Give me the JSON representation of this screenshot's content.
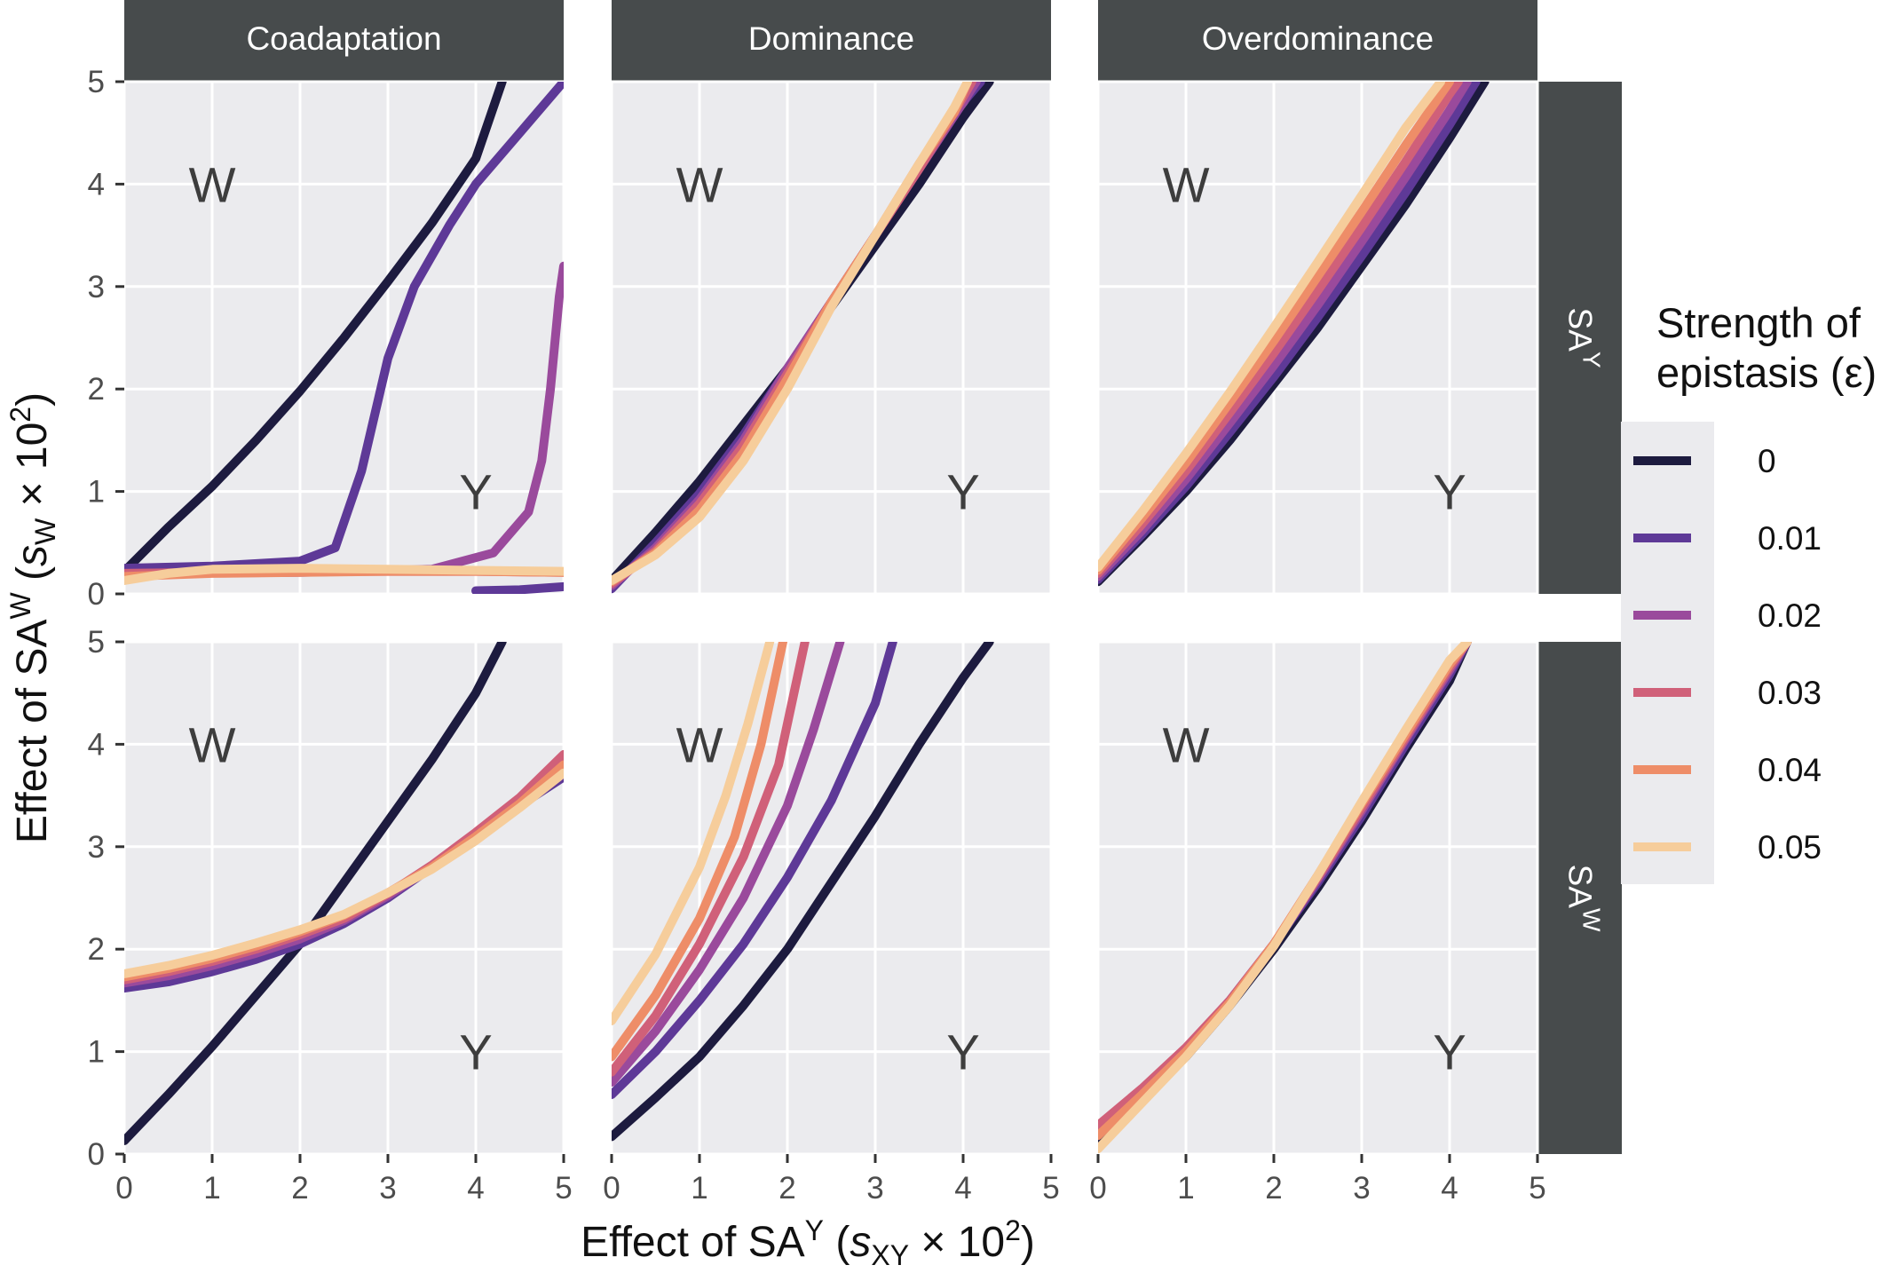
{
  "chart_data": {
    "type": "line",
    "columns": [
      "Coadaptation",
      "Dominance",
      "Overdominance"
    ],
    "rows": [
      "SAY",
      "SAW"
    ],
    "xlabel": "Effect of SAY (sXY × 10²)",
    "ylabel": "Effect of SAW (sW × 10²)",
    "xlim": [
      0,
      5
    ],
    "ylim": [
      0,
      5
    ],
    "x_ticks": [
      "0",
      "1",
      "2",
      "3",
      "4",
      "5"
    ],
    "y_ticks": [
      "0",
      "1",
      "2",
      "3",
      "4",
      "5"
    ],
    "region_labels": {
      "upper_left": "W",
      "lower_right": "Y"
    },
    "grid": true,
    "legend": {
      "title_line1": "Strength of",
      "title_line2": "epistasis (ε)",
      "position": "right",
      "entries": [
        {
          "label": "0",
          "color": "#1d1b3f"
        },
        {
          "label": "0.01",
          "color": "#5e3997"
        },
        {
          "label": "0.02",
          "color": "#9a4a9c"
        },
        {
          "label": "0.03",
          "color": "#d06079"
        },
        {
          "label": "0.04",
          "color": "#ee8d68"
        },
        {
          "label": "0.05",
          "color": "#f6cd9b"
        }
      ]
    },
    "panels": [
      {
        "column": "Coadaptation",
        "row": "SAY",
        "series": [
          {
            "epsilon": "0",
            "x": [
              0,
              0.5,
              1,
              1.5,
              2,
              2.5,
              3,
              3.5,
              4,
              4.3
            ],
            "y": [
              0.22,
              0.65,
              1.05,
              1.5,
              1.98,
              2.5,
              3.05,
              3.62,
              4.25,
              5.0
            ]
          },
          {
            "epsilon": "0.01",
            "x": [
              0,
              1,
              2,
              2.4,
              2.7,
              3,
              3.3,
              3.7,
              4,
              4.5,
              5
            ],
            "y": [
              0.25,
              0.27,
              0.32,
              0.45,
              1.2,
              2.3,
              3.0,
              3.6,
              4.0,
              4.5,
              5.0
            ]
          },
          {
            "epsilon": "0.02",
            "x": [
              0,
              2,
              3.5,
              4.2,
              4.6,
              4.75,
              4.85,
              4.95,
              5
            ],
            "y": [
              0.2,
              0.21,
              0.24,
              0.4,
              0.8,
              1.3,
              2.0,
              2.9,
              3.2
            ]
          },
          {
            "epsilon": "0.03",
            "x": [
              0,
              1,
              2,
              3,
              4,
              5
            ],
            "y": [
              0.2,
              0.21,
              0.22,
              0.22,
              0.22,
              0.21
            ]
          },
          {
            "epsilon": "0.04",
            "x": [
              0,
              1,
              2,
              3,
              4,
              5
            ],
            "y": [
              0.17,
              0.2,
              0.21,
              0.22,
              0.22,
              0.21
            ]
          },
          {
            "epsilon": "0.05",
            "x": [
              0,
              0.5,
              1,
              2,
              3,
              4,
              5
            ],
            "y": [
              0.13,
              0.2,
              0.24,
              0.25,
              0.24,
              0.23,
              0.22
            ]
          },
          {
            "epsilon": "0.01",
            "x": [
              4.0,
              4.5,
              5.0
            ],
            "y": [
              0.03,
              0.04,
              0.07
            ]
          }
        ]
      },
      {
        "column": "Dominance",
        "row": "SAY",
        "series": [
          {
            "epsilon": "0",
            "x": [
              0,
              0.5,
              1,
              1.5,
              2,
              2.5,
              3,
              3.5,
              4,
              4.3
            ],
            "y": [
              0.13,
              0.6,
              1.1,
              1.65,
              2.2,
              2.8,
              3.4,
              4.0,
              4.65,
              5.0
            ]
          },
          {
            "epsilon": "0.01",
            "x": [
              0,
              0.5,
              1,
              1.5,
              2,
              2.5,
              3,
              3.5,
              4,
              4.2
            ],
            "y": [
              0.05,
              0.5,
              0.98,
              1.55,
              2.2,
              2.85,
              3.5,
              4.15,
              4.8,
              5.0
            ]
          },
          {
            "epsilon": "0.02",
            "x": [
              0,
              0.5,
              1,
              1.5,
              2,
              2.5,
              3,
              3.5,
              4,
              4.15
            ],
            "y": [
              0.08,
              0.45,
              0.92,
              1.5,
              2.2,
              2.85,
              3.5,
              4.15,
              4.8,
              5.0
            ]
          },
          {
            "epsilon": "0.03",
            "x": [
              0,
              0.5,
              1,
              1.5,
              2,
              2.5,
              3,
              3.5,
              3.9,
              4.1
            ],
            "y": [
              0.1,
              0.42,
              0.88,
              1.45,
              2.15,
              2.85,
              3.5,
              4.15,
              4.7,
              5.0
            ]
          },
          {
            "epsilon": "0.04",
            "x": [
              0,
              0.5,
              1,
              1.5,
              2,
              2.5,
              3,
              3.5,
              3.9,
              4.05
            ],
            "y": [
              0.12,
              0.4,
              0.82,
              1.38,
              2.1,
              2.85,
              3.5,
              4.2,
              4.7,
              5.0
            ]
          },
          {
            "epsilon": "0.05",
            "x": [
              0,
              0.5,
              1,
              1.5,
              2,
              2.5,
              3,
              3.5,
              3.9,
              4.05
            ],
            "y": [
              0.13,
              0.38,
              0.75,
              1.3,
              2.0,
              2.8,
              3.5,
              4.2,
              4.75,
              5.0
            ]
          }
        ]
      },
      {
        "column": "Overdominance",
        "row": "SAY",
        "series": [
          {
            "epsilon": "0",
            "x": [
              0,
              0.5,
              1,
              1.5,
              2,
              2.5,
              3,
              3.5,
              4,
              4.4
            ],
            "y": [
              0.12,
              0.55,
              1.0,
              1.5,
              2.05,
              2.6,
              3.2,
              3.8,
              4.45,
              5.0
            ]
          },
          {
            "epsilon": "0.01",
            "x": [
              0,
              0.5,
              1,
              1.5,
              2,
              2.5,
              3,
              3.5,
              4,
              4.3
            ],
            "y": [
              0.14,
              0.58,
              1.05,
              1.58,
              2.12,
              2.7,
              3.3,
              3.92,
              4.58,
              5.0
            ]
          },
          {
            "epsilon": "0.02",
            "x": [
              0,
              0.5,
              1,
              1.5,
              2,
              2.5,
              3,
              3.5,
              4,
              4.2
            ],
            "y": [
              0.17,
              0.62,
              1.12,
              1.67,
              2.23,
              2.82,
              3.44,
              4.07,
              4.72,
              5.0
            ]
          },
          {
            "epsilon": "0.03",
            "x": [
              0,
              0.5,
              1,
              1.5,
              2,
              2.5,
              3,
              3.5,
              4,
              4.1
            ],
            "y": [
              0.2,
              0.68,
              1.2,
              1.77,
              2.35,
              2.96,
              3.58,
              4.22,
              4.88,
              5.0
            ]
          },
          {
            "epsilon": "0.04",
            "x": [
              0,
              0.5,
              1,
              1.5,
              2,
              2.5,
              3,
              3.5,
              4.0
            ],
            "y": [
              0.23,
              0.74,
              1.28,
              1.87,
              2.47,
              3.1,
              3.73,
              4.38,
              5.0
            ]
          },
          {
            "epsilon": "0.05",
            "x": [
              0,
              0.5,
              1,
              1.5,
              2,
              2.5,
              3,
              3.5,
              3.9
            ],
            "y": [
              0.26,
              0.8,
              1.37,
              1.97,
              2.6,
              3.24,
              3.89,
              4.55,
              5.0
            ]
          }
        ]
      },
      {
        "column": "Coadaptation",
        "row": "SAW",
        "series": [
          {
            "epsilon": "0",
            "x": [
              0,
              0.5,
              1,
              1.5,
              2,
              2.5,
              3,
              3.5,
              4,
              4.3
            ],
            "y": [
              0.13,
              0.58,
              1.05,
              1.55,
              2.05,
              2.65,
              3.25,
              3.85,
              4.5,
              5.0
            ]
          },
          {
            "epsilon": "0.01",
            "x": [
              0,
              0.5,
              1,
              1.5,
              2,
              2.5,
              3,
              3.5,
              4,
              4.5,
              5
            ],
            "y": [
              1.62,
              1.68,
              1.78,
              1.9,
              2.05,
              2.25,
              2.5,
              2.8,
              3.1,
              3.4,
              3.68
            ]
          },
          {
            "epsilon": "0.02",
            "x": [
              0,
              0.5,
              1,
              1.5,
              2,
              2.5,
              3,
              3.5,
              4,
              4.5,
              5
            ],
            "y": [
              1.67,
              1.74,
              1.84,
              1.96,
              2.1,
              2.28,
              2.52,
              2.8,
              3.12,
              3.45,
              3.82
            ]
          },
          {
            "epsilon": "0.03",
            "x": [
              0,
              0.5,
              1,
              1.5,
              2,
              2.5,
              3,
              3.5,
              4,
              4.5,
              5
            ],
            "y": [
              1.7,
              1.78,
              1.88,
              2.0,
              2.14,
              2.3,
              2.54,
              2.82,
              3.14,
              3.48,
              3.9
            ]
          },
          {
            "epsilon": "0.04",
            "x": [
              0,
              0.5,
              1,
              1.5,
              2,
              2.5,
              3,
              3.5,
              4,
              4.5,
              5
            ],
            "y": [
              1.73,
              1.81,
              1.91,
              2.03,
              2.17,
              2.33,
              2.55,
              2.8,
              3.1,
              3.42,
              3.8
            ]
          },
          {
            "epsilon": "0.05",
            "x": [
              0,
              0.5,
              1,
              1.5,
              2,
              2.5,
              3,
              3.5,
              4,
              4.5,
              5
            ],
            "y": [
              1.76,
              1.84,
              1.94,
              2.06,
              2.19,
              2.34,
              2.55,
              2.78,
              3.06,
              3.38,
              3.72
            ]
          }
        ]
      },
      {
        "column": "Dominance",
        "row": "SAW",
        "series": [
          {
            "epsilon": "0",
            "x": [
              0,
              0.5,
              1,
              1.5,
              2,
              2.5,
              3,
              3.5,
              4,
              4.3
            ],
            "y": [
              0.17,
              0.55,
              0.95,
              1.45,
              2.0,
              2.65,
              3.3,
              4.0,
              4.65,
              5.0
            ]
          },
          {
            "epsilon": "0.01",
            "x": [
              0,
              0.5,
              1,
              1.5,
              2,
              2.5,
              3,
              3.2
            ],
            "y": [
              0.58,
              1.0,
              1.5,
              2.05,
              2.7,
              3.45,
              4.4,
              5.0
            ]
          },
          {
            "epsilon": "0.02",
            "x": [
              0,
              0.5,
              1,
              1.5,
              2,
              2.3,
              2.6
            ],
            "y": [
              0.7,
              1.2,
              1.8,
              2.5,
              3.4,
              4.15,
              5.0
            ]
          },
          {
            "epsilon": "0.03",
            "x": [
              0,
              0.5,
              1,
              1.5,
              1.9,
              2.2
            ],
            "y": [
              0.8,
              1.35,
              2.05,
              2.9,
              3.8,
              5.0
            ]
          },
          {
            "epsilon": "0.04",
            "x": [
              0,
              0.5,
              1,
              1.4,
              1.7,
              1.95
            ],
            "y": [
              0.95,
              1.55,
              2.3,
              3.1,
              4.0,
              5.0
            ]
          },
          {
            "epsilon": "0.05",
            "x": [
              0,
              0.5,
              1,
              1.3,
              1.55,
              1.8
            ],
            "y": [
              1.3,
              1.95,
              2.8,
              3.5,
              4.2,
              5.0
            ]
          }
        ]
      },
      {
        "column": "Overdominance",
        "row": "SAW",
        "series": [
          {
            "epsilon": "0",
            "x": [
              0,
              0.5,
              1,
              1.5,
              2,
              2.5,
              3,
              3.5,
              4,
              4.2
            ],
            "y": [
              0.15,
              0.55,
              0.95,
              1.45,
              2.0,
              2.6,
              3.25,
              3.95,
              4.62,
              5.0
            ]
          },
          {
            "epsilon": "0.01",
            "x": [
              0,
              0.5,
              1,
              1.5,
              2,
              2.5,
              3,
              3.5,
              4,
              4.2
            ],
            "y": [
              0.2,
              0.58,
              1.0,
              1.5,
              2.05,
              2.65,
              3.3,
              4.0,
              4.68,
              5.0
            ]
          },
          {
            "epsilon": "0.02",
            "x": [
              0,
              0.5,
              1,
              1.5,
              2,
              2.5,
              3,
              3.5,
              4,
              4.2
            ],
            "y": [
              0.25,
              0.62,
              1.03,
              1.5,
              2.05,
              2.68,
              3.35,
              4.05,
              4.72,
              5.0
            ]
          },
          {
            "epsilon": "0.03",
            "x": [
              0,
              0.5,
              1,
              1.5,
              2,
              2.5,
              3,
              3.5,
              4,
              4.2
            ],
            "y": [
              0.28,
              0.64,
              1.04,
              1.5,
              2.05,
              2.7,
              3.38,
              4.07,
              4.75,
              5.0
            ]
          },
          {
            "epsilon": "0.04",
            "x": [
              0,
              0.5,
              1,
              1.5,
              2,
              2.5,
              3,
              3.5,
              4,
              4.2
            ],
            "y": [
              0.18,
              0.58,
              1.0,
              1.48,
              2.05,
              2.72,
              3.42,
              4.1,
              4.78,
              5.0
            ]
          },
          {
            "epsilon": "0.05",
            "x": [
              0,
              0.5,
              1,
              1.5,
              2,
              2.5,
              3,
              3.5,
              4,
              4.2
            ],
            "y": [
              0.05,
              0.5,
              0.95,
              1.45,
              2.03,
              2.72,
              3.44,
              4.14,
              4.82,
              5.0
            ]
          }
        ]
      }
    ]
  }
}
